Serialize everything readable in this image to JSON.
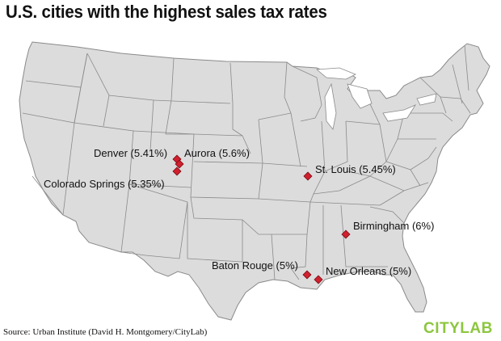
{
  "title": "U.S. cities with the highest sales tax rates",
  "source": "Source: Urban Institute (David H. Montgomery/CityLab)",
  "logo": "CITYLAB",
  "colors": {
    "land": "#dcdcdc",
    "border": "#8a8a8a",
    "marker": "#d0202e",
    "marker_outline": "#7a0a12",
    "logo": "#8cc63f"
  },
  "markers": [
    {
      "city": "Denver",
      "label": "Denver (5.41%)",
      "rate_percent": 5.41
    },
    {
      "city": "Aurora",
      "label": "Aurora (5.6%)",
      "rate_percent": 5.6
    },
    {
      "city": "Colorado Springs",
      "label": "Colorado Springs (5.35%)",
      "rate_percent": 5.35
    },
    {
      "city": "St. Louis",
      "label": "St. Louis (5.45%)",
      "rate_percent": 5.45
    },
    {
      "city": "Birmingham",
      "label": "Birmingham (6%)",
      "rate_percent": 6
    },
    {
      "city": "Baton Rouge",
      "label": "Baton Rouge (5%)",
      "rate_percent": 5
    },
    {
      "city": "New Orleans",
      "label": "New Orleans (5%)",
      "rate_percent": 5
    }
  ]
}
